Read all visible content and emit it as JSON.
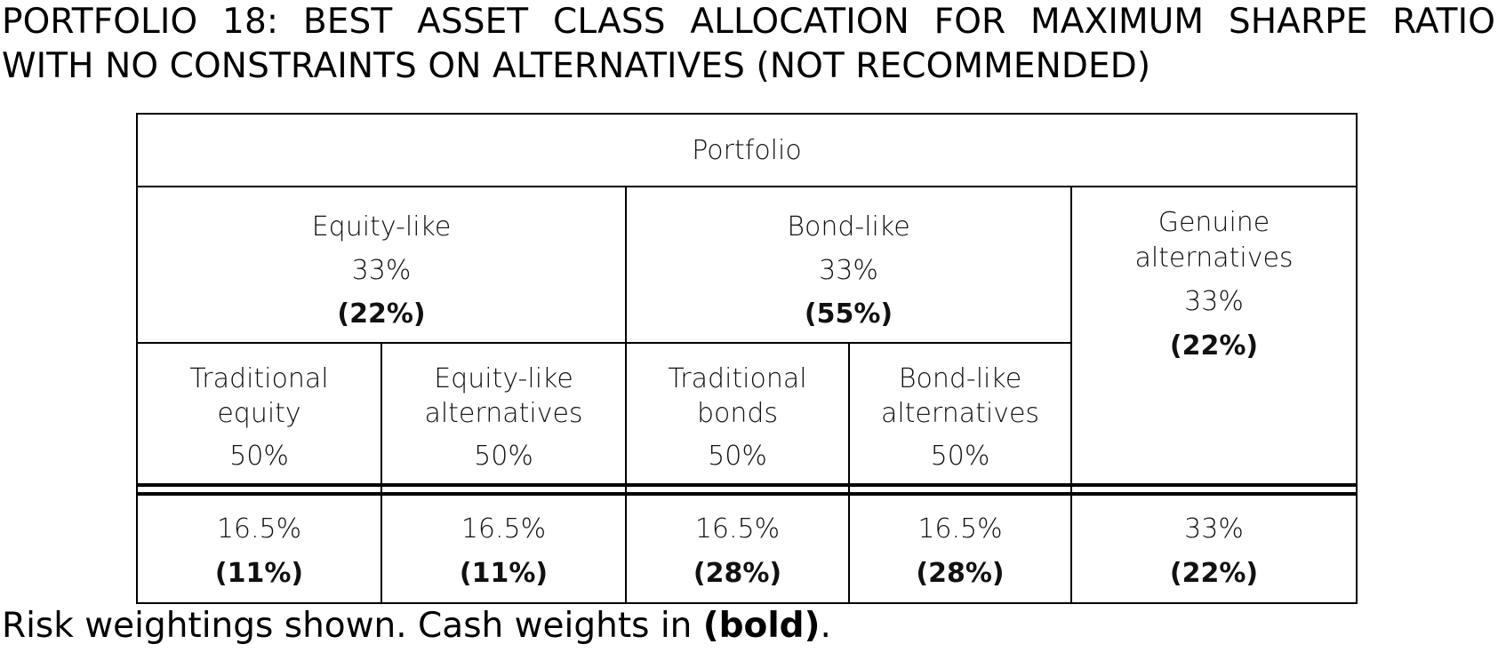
{
  "title": {
    "line1": "PORTFOLIO 18: BEST ASSET CLASS ALLOCATION FOR MAXIMUM SHARPE RATIO",
    "line2": "WITH NO CONSTRAINTS ON ALTERNATIVES (NOT RECOMMENDED)"
  },
  "table": {
    "root": "Portfolio",
    "groups": [
      {
        "name": "Equity-like",
        "risk": "33%",
        "cash": "(22%)"
      },
      {
        "name": "Bond-like",
        "risk": "33%",
        "cash": "(55%)"
      },
      {
        "name_line1": "Genuine",
        "name_line2": "alternatives",
        "risk": "33%",
        "cash": "(22%)"
      }
    ],
    "subgroups": [
      {
        "line1": "Traditional",
        "line2": "equity",
        "pct": "50%"
      },
      {
        "line1": "Equity-like",
        "line2": "alternatives",
        "pct": "50%"
      },
      {
        "line1": "Traditional",
        "line2": "bonds",
        "pct": "50%"
      },
      {
        "line1": "Bond-like",
        "line2": "alternatives",
        "pct": "50%"
      }
    ],
    "totals": [
      {
        "risk": "16.5%",
        "cash": "(11%)"
      },
      {
        "risk": "16.5%",
        "cash": "(11%)"
      },
      {
        "risk": "16.5%",
        "cash": "(28%)"
      },
      {
        "risk": "16.5%",
        "cash": "(28%)"
      },
      {
        "risk": "33%",
        "cash": "(22%)"
      }
    ]
  },
  "footer": {
    "text": "Risk weightings shown. Cash weights in ",
    "bold": "(bold)",
    "end": "."
  }
}
